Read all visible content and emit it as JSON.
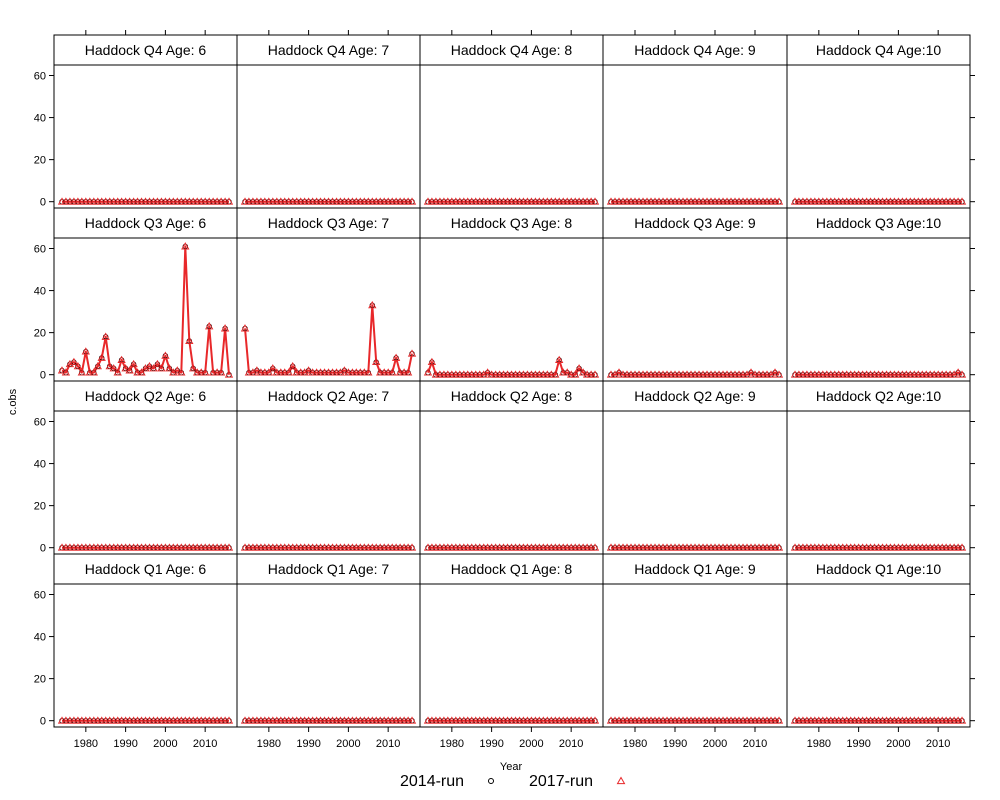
{
  "chart_data": {
    "type": "line",
    "layout": {
      "columns": 5,
      "rows": 4
    },
    "xlabel": "Year",
    "ylabel": "c.obs",
    "xlim": [
      1972,
      2018
    ],
    "ylim": [
      -3,
      65
    ],
    "xticks": [
      1980,
      1990,
      2000,
      2010
    ],
    "yticks": [
      0,
      20,
      40,
      60
    ],
    "x": [
      1974,
      1975,
      1976,
      1977,
      1978,
      1979,
      1980,
      1981,
      1982,
      1983,
      1984,
      1985,
      1986,
      1987,
      1988,
      1989,
      1990,
      1991,
      1992,
      1993,
      1994,
      1995,
      1996,
      1997,
      1998,
      1999,
      2000,
      2001,
      2002,
      2003,
      2004,
      2005,
      2006,
      2007,
      2008,
      2009,
      2010,
      2011,
      2012,
      2013,
      2014,
      2015,
      2016
    ],
    "legend": {
      "position": "bottom",
      "entries": [
        {
          "name": "2014-run",
          "symbol": "circle",
          "color": "#000000"
        },
        {
          "name": "2017-run",
          "symbol": "triangle",
          "color": "#e8282a"
        }
      ]
    },
    "colors": {
      "line": "#e8282a",
      "circle": "#000000",
      "triangle": "#e8282a"
    },
    "panels": [
      {
        "title": "Haddock Q4 Age: 6",
        "row": 1,
        "col": 1,
        "values": "zero"
      },
      {
        "title": "Haddock Q4 Age: 7",
        "row": 1,
        "col": 2,
        "values": "zero"
      },
      {
        "title": "Haddock Q4 Age: 8",
        "row": 1,
        "col": 3,
        "values": "zero"
      },
      {
        "title": "Haddock Q4 Age: 9",
        "row": 1,
        "col": 4,
        "values": "zero"
      },
      {
        "title": "Haddock Q4 Age:10",
        "row": 1,
        "col": 5,
        "values": "zero"
      },
      {
        "title": "Haddock Q3 Age: 6",
        "row": 2,
        "col": 1,
        "values": [
          2,
          1,
          5,
          6,
          4,
          1,
          11,
          1,
          1,
          4,
          8,
          18,
          4,
          3,
          1,
          7,
          3,
          2,
          5,
          1,
          1,
          3,
          4,
          3,
          5,
          3,
          9,
          3,
          1,
          2,
          1,
          61,
          16,
          3,
          1,
          1,
          1,
          23,
          1,
          1,
          1,
          22,
          0
        ]
      },
      {
        "title": "Haddock Q3 Age: 7",
        "row": 2,
        "col": 2,
        "values": [
          22,
          1,
          1,
          2,
          1,
          1,
          1,
          3,
          1,
          1,
          1,
          1,
          4,
          1,
          1,
          1,
          2,
          1,
          1,
          1,
          1,
          1,
          1,
          1,
          1,
          2,
          1,
          1,
          1,
          1,
          1,
          1,
          33,
          6,
          1,
          1,
          1,
          1,
          8,
          1,
          1,
          1,
          10
        ]
      },
      {
        "title": "Haddock Q3 Age: 8",
        "row": 2,
        "col": 3,
        "values": [
          1,
          6,
          0,
          0,
          0,
          0,
          0,
          0,
          0,
          0,
          0,
          0,
          0,
          0,
          0,
          1,
          0,
          0,
          0,
          0,
          0,
          0,
          0,
          0,
          0,
          0,
          0,
          0,
          0,
          0,
          0,
          0,
          0,
          7,
          1,
          1,
          0,
          0,
          3,
          1,
          0,
          0,
          0
        ]
      },
      {
        "title": "Haddock Q3 Age: 9",
        "row": 2,
        "col": 4,
        "values": [
          0,
          0,
          1,
          0,
          0,
          0,
          0,
          0,
          0,
          0,
          0,
          0,
          0,
          0,
          0,
          0,
          0,
          0,
          0,
          0,
          0,
          0,
          0,
          0,
          0,
          0,
          0,
          0,
          0,
          0,
          0,
          0,
          0,
          0,
          0,
          1,
          0,
          0,
          0,
          0,
          0,
          1,
          0
        ]
      },
      {
        "title": "Haddock Q3 Age:10",
        "row": 2,
        "col": 5,
        "values": [
          0,
          0,
          0,
          0,
          0,
          0,
          0,
          0,
          0,
          0,
          0,
          0,
          0,
          0,
          0,
          0,
          0,
          0,
          0,
          0,
          0,
          0,
          0,
          0,
          0,
          0,
          0,
          0,
          0,
          0,
          0,
          0,
          0,
          0,
          0,
          0,
          0,
          0,
          0,
          0,
          0,
          1,
          0
        ]
      },
      {
        "title": "Haddock Q2 Age: 6",
        "row": 3,
        "col": 1,
        "values": "zero"
      },
      {
        "title": "Haddock Q2 Age: 7",
        "row": 3,
        "col": 2,
        "values": "zero"
      },
      {
        "title": "Haddock Q2 Age: 8",
        "row": 3,
        "col": 3,
        "values": "zero"
      },
      {
        "title": "Haddock Q2 Age: 9",
        "row": 3,
        "col": 4,
        "values": "zero"
      },
      {
        "title": "Haddock Q2 Age:10",
        "row": 3,
        "col": 5,
        "values": "zero"
      },
      {
        "title": "Haddock Q1 Age: 6",
        "row": 4,
        "col": 1,
        "values": "zero"
      },
      {
        "title": "Haddock Q1 Age: 7",
        "row": 4,
        "col": 2,
        "values": "zero"
      },
      {
        "title": "Haddock Q1 Age: 8",
        "row": 4,
        "col": 3,
        "values": "zero"
      },
      {
        "title": "Haddock Q1 Age: 9",
        "row": 4,
        "col": 4,
        "values": "zero"
      },
      {
        "title": "Haddock Q1 Age:10",
        "row": 4,
        "col": 5,
        "values": "zero"
      }
    ]
  }
}
